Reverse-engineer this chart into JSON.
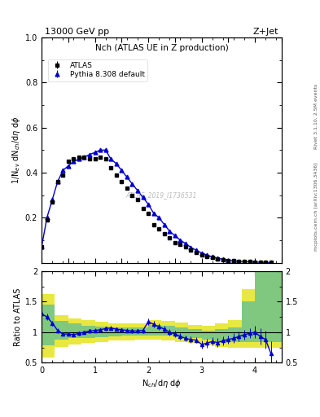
{
  "title_top": "13000 GeV pp",
  "title_right": "Z+Jet",
  "plot_title": "Nch (ATLAS UE in Z production)",
  "ylabel_main": "1/N$_{ev}$ dN$_{ch}$/d$\\eta$ d$\\phi$",
  "ylabel_ratio": "Ratio to ATLAS",
  "xlabel": "N$_{ch}$/d$\\eta$ d$\\phi$",
  "watermark": "ATLAS_2019_I1736531",
  "rivet_label": "Rivet 3.1.10, 2.5M events",
  "arxiv_label": "mcplots.cern.ch [arXiv:1306.3436]",
  "atlas_x": [
    0.0,
    0.1,
    0.2,
    0.3,
    0.4,
    0.5,
    0.6,
    0.7,
    0.8,
    0.9,
    1.0,
    1.1,
    1.2,
    1.3,
    1.4,
    1.5,
    1.6,
    1.7,
    1.8,
    1.9,
    2.0,
    2.1,
    2.2,
    2.3,
    2.4,
    2.5,
    2.6,
    2.7,
    2.8,
    2.9,
    3.0,
    3.1,
    3.2,
    3.3,
    3.4,
    3.5,
    3.6,
    3.7,
    3.8,
    3.9,
    4.0,
    4.1,
    4.2,
    4.3
  ],
  "atlas_y": [
    0.07,
    0.19,
    0.27,
    0.36,
    0.39,
    0.45,
    0.46,
    0.47,
    0.47,
    0.46,
    0.46,
    0.47,
    0.46,
    0.42,
    0.39,
    0.36,
    0.33,
    0.3,
    0.28,
    0.24,
    0.22,
    0.17,
    0.15,
    0.13,
    0.11,
    0.09,
    0.08,
    0.07,
    0.055,
    0.045,
    0.035,
    0.028,
    0.022,
    0.018,
    0.013,
    0.01,
    0.008,
    0.006,
    0.005,
    0.004,
    0.003,
    0.002,
    0.0015,
    0.001
  ],
  "atlas_yerr": [
    0.005,
    0.005,
    0.005,
    0.005,
    0.005,
    0.005,
    0.005,
    0.005,
    0.005,
    0.005,
    0.005,
    0.005,
    0.005,
    0.005,
    0.005,
    0.005,
    0.005,
    0.005,
    0.005,
    0.005,
    0.005,
    0.005,
    0.005,
    0.005,
    0.005,
    0.005,
    0.005,
    0.005,
    0.004,
    0.004,
    0.003,
    0.003,
    0.003,
    0.002,
    0.002,
    0.002,
    0.002,
    0.001,
    0.001,
    0.001,
    0.001,
    0.001,
    0.001,
    0.001
  ],
  "pythia_x": [
    0.0,
    0.1,
    0.2,
    0.3,
    0.4,
    0.5,
    0.6,
    0.7,
    0.8,
    0.9,
    1.0,
    1.1,
    1.2,
    1.3,
    1.4,
    1.5,
    1.6,
    1.7,
    1.8,
    1.9,
    2.0,
    2.1,
    2.2,
    2.3,
    2.4,
    2.5,
    2.6,
    2.7,
    2.8,
    2.9,
    3.0,
    3.1,
    3.2,
    3.3,
    3.4,
    3.5,
    3.6,
    3.7,
    3.8,
    3.9,
    4.0,
    4.1,
    4.2,
    4.3
  ],
  "pythia_y": [
    0.07,
    0.2,
    0.28,
    0.36,
    0.41,
    0.43,
    0.45,
    0.46,
    0.47,
    0.48,
    0.49,
    0.5,
    0.5,
    0.46,
    0.44,
    0.41,
    0.38,
    0.35,
    0.32,
    0.29,
    0.26,
    0.22,
    0.2,
    0.17,
    0.14,
    0.12,
    0.1,
    0.085,
    0.068,
    0.055,
    0.043,
    0.034,
    0.026,
    0.02,
    0.015,
    0.011,
    0.008,
    0.006,
    0.005,
    0.004,
    0.003,
    0.002,
    0.0013,
    0.0005
  ],
  "pythia_yerr": [
    0.003,
    0.003,
    0.003,
    0.003,
    0.003,
    0.003,
    0.003,
    0.003,
    0.003,
    0.003,
    0.003,
    0.003,
    0.003,
    0.003,
    0.003,
    0.003,
    0.003,
    0.003,
    0.003,
    0.003,
    0.003,
    0.003,
    0.003,
    0.003,
    0.003,
    0.003,
    0.003,
    0.003,
    0.002,
    0.002,
    0.002,
    0.002,
    0.002,
    0.002,
    0.002,
    0.001,
    0.001,
    0.001,
    0.001,
    0.001,
    0.001,
    0.001,
    0.001,
    0.001
  ],
  "ratio_x": [
    0.0,
    0.1,
    0.2,
    0.3,
    0.4,
    0.5,
    0.6,
    0.7,
    0.8,
    0.9,
    1.0,
    1.1,
    1.2,
    1.3,
    1.4,
    1.5,
    1.6,
    1.7,
    1.8,
    1.9,
    2.0,
    2.1,
    2.2,
    2.3,
    2.4,
    2.5,
    2.6,
    2.7,
    2.8,
    2.9,
    3.0,
    3.1,
    3.2,
    3.3,
    3.4,
    3.5,
    3.6,
    3.7,
    3.8,
    3.9,
    4.0,
    4.1,
    4.2,
    4.3
  ],
  "ratio_y": [
    1.3,
    1.25,
    1.15,
    1.03,
    0.97,
    0.97,
    0.96,
    0.98,
    1.0,
    1.02,
    1.03,
    1.04,
    1.06,
    1.07,
    1.05,
    1.04,
    1.03,
    1.02,
    1.02,
    1.03,
    1.17,
    1.13,
    1.09,
    1.05,
    1.0,
    0.97,
    0.93,
    0.9,
    0.88,
    0.87,
    0.8,
    0.82,
    0.85,
    0.83,
    0.86,
    0.88,
    0.9,
    0.93,
    0.96,
    0.98,
    1.0,
    0.93,
    0.88,
    0.65
  ],
  "ratio_yerr": [
    0.06,
    0.05,
    0.04,
    0.04,
    0.03,
    0.03,
    0.03,
    0.03,
    0.03,
    0.03,
    0.03,
    0.03,
    0.03,
    0.03,
    0.03,
    0.03,
    0.03,
    0.03,
    0.03,
    0.04,
    0.05,
    0.05,
    0.05,
    0.05,
    0.05,
    0.05,
    0.05,
    0.05,
    0.05,
    0.05,
    0.07,
    0.07,
    0.07,
    0.07,
    0.07,
    0.07,
    0.08,
    0.08,
    0.08,
    0.08,
    0.1,
    0.13,
    0.15,
    0.2
  ],
  "band_x_edges": [
    0.0,
    0.25,
    0.5,
    0.75,
    1.0,
    1.25,
    1.5,
    1.75,
    2.0,
    2.25,
    2.5,
    2.75,
    3.0,
    3.25,
    3.5,
    3.75,
    4.0,
    4.5
  ],
  "band_green_low": [
    0.78,
    0.88,
    0.9,
    0.91,
    0.92,
    0.93,
    0.94,
    0.95,
    0.95,
    0.94,
    0.92,
    0.9,
    0.88,
    0.85,
    0.84,
    0.84,
    0.84,
    0.84
  ],
  "band_green_high": [
    1.45,
    1.18,
    1.14,
    1.11,
    1.09,
    1.08,
    1.08,
    1.08,
    1.12,
    1.1,
    1.08,
    1.05,
    1.02,
    1.05,
    1.08,
    1.5,
    2.0,
    2.0
  ],
  "band_yellow_low": [
    0.58,
    0.76,
    0.8,
    0.82,
    0.84,
    0.86,
    0.87,
    0.88,
    0.88,
    0.87,
    0.84,
    0.82,
    0.78,
    0.76,
    0.75,
    0.75,
    0.75,
    0.75
  ],
  "band_yellow_high": [
    1.62,
    1.28,
    1.23,
    1.2,
    1.17,
    1.15,
    1.14,
    1.14,
    1.2,
    1.18,
    1.16,
    1.12,
    1.1,
    1.14,
    1.2,
    1.7,
    2.15,
    2.15
  ],
  "xlim": [
    0.0,
    4.5
  ],
  "ylim_main": [
    0.0,
    1.0
  ],
  "ylim_ratio": [
    0.5,
    2.0
  ],
  "yticks_main": [
    0.2,
    0.4,
    0.6,
    0.8,
    1.0
  ],
  "yticks_ratio": [
    0.5,
    1.0,
    1.5,
    2.0
  ],
  "xticks": [
    0,
    1,
    2,
    3,
    4
  ],
  "atlas_color": "#000000",
  "pythia_color": "#0000cc",
  "green_color": "#80c880",
  "yellow_color": "#e8e840"
}
